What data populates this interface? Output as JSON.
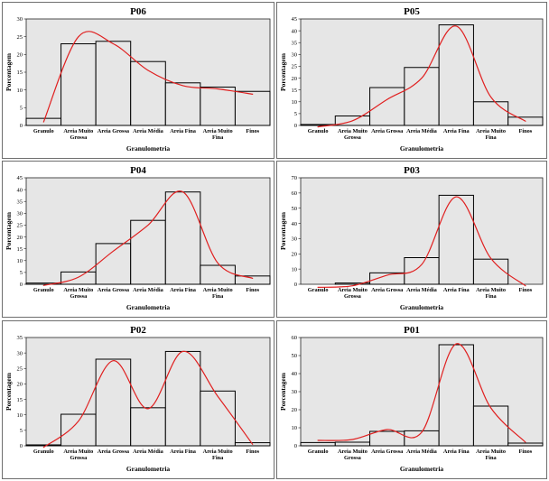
{
  "chart_data": [
    {
      "type": "bar",
      "title": "P06",
      "xlabel": "Granulometria",
      "ylabel": "Porcentagem",
      "categories": [
        "Granulo",
        "Areia Muito Grossa",
        "Areia Grossa",
        "Areia Média",
        "Areia Fina",
        "Areia Muito Fina",
        "Finos"
      ],
      "values": [
        2,
        23,
        23.7,
        18,
        12,
        10.8,
        9.6
      ],
      "ylim": [
        0,
        30
      ],
      "yticks": [
        0,
        5,
        10,
        15,
        20,
        25,
        30
      ],
      "curve": [
        1,
        25,
        23,
        15.5,
        11.2,
        10.3,
        8.8
      ],
      "bar_color": "#e6e6e6",
      "curve_color": "#e02020"
    },
    {
      "type": "bar",
      "title": "P05",
      "xlabel": "Granulometria",
      "ylabel": "Porcentagem",
      "categories": [
        "Granulo",
        "Areia Muito Grossa",
        "Areia Grossa",
        "Areia Média",
        "Areia Fina",
        "Areia Muito Fina",
        "Finos"
      ],
      "values": [
        0.4,
        4,
        16,
        24.5,
        42.5,
        10,
        3.5
      ],
      "ylim": [
        0,
        45
      ],
      "yticks": [
        0,
        5,
        10,
        15,
        20,
        25,
        30,
        35,
        40,
        45
      ],
      "curve": [
        -0.6,
        2,
        11,
        20,
        42,
        12,
        1.8
      ],
      "bar_color": "#e6e6e6",
      "curve_color": "#e02020"
    },
    {
      "type": "bar",
      "title": "P04",
      "xlabel": "Granulometria",
      "ylabel": "Porcentagem",
      "categories": [
        "Granulo",
        "Areia Muito Grossa",
        "Areia Grossa",
        "Areia Média",
        "Areia Fina",
        "Areia Muito Fina",
        "Finos"
      ],
      "values": [
        0.5,
        5.2,
        17.2,
        27,
        39,
        8,
        3.5
      ],
      "ylim": [
        0,
        45
      ],
      "yticks": [
        0,
        5,
        10,
        15,
        20,
        25,
        30,
        35,
        40,
        45
      ],
      "curve": [
        -0.5,
        3,
        14,
        25,
        39,
        9,
        2.5
      ],
      "bar_color": "#e6e6e6",
      "curve_color": "#e02020"
    },
    {
      "type": "bar",
      "title": "P03",
      "xlabel": "Granulometria",
      "ylabel": "Porcentagem",
      "categories": [
        "Granulo",
        "Areia Muito Grossa",
        "Areia Grossa",
        "Areia Média",
        "Areia Fina",
        "Areia Muito Fina",
        "Finos"
      ],
      "values": [
        0,
        0.8,
        7.5,
        17.5,
        58.5,
        16.5,
        0
      ],
      "ylim": [
        0,
        70
      ],
      "yticks": [
        0,
        10,
        20,
        30,
        40,
        50,
        60,
        70
      ],
      "curve": [
        -2,
        -1,
        6,
        13,
        57.5,
        17,
        -1
      ],
      "bar_color": "#e6e6e6",
      "curve_color": "#e02020"
    },
    {
      "type": "bar",
      "title": "P02",
      "xlabel": "Granulometria",
      "ylabel": "Porcentagem",
      "categories": [
        "Granulo",
        "Areia Muito Grossa",
        "Areia Grossa",
        "Areia Média",
        "Areia Fina",
        "Areia Muito Fina",
        "Finos"
      ],
      "values": [
        0.3,
        10.2,
        28,
        12.3,
        30.5,
        17.7,
        1
      ],
      "ylim": [
        0,
        35
      ],
      "yticks": [
        0,
        5,
        10,
        15,
        20,
        25,
        30,
        35
      ],
      "curve": [
        -0.5,
        8,
        27.5,
        12,
        30.5,
        16,
        0.5
      ],
      "bar_color": "#e6e6e6",
      "curve_color": "#e02020"
    },
    {
      "type": "bar",
      "title": "P01",
      "xlabel": "Granulometria",
      "ylabel": "Porcentagem",
      "categories": [
        "Granulo",
        "Areia Muito Grossa",
        "Areia Grossa",
        "Areia Média",
        "Areia Fina",
        "Areia Muito Fina",
        "Finos"
      ],
      "values": [
        1.8,
        2,
        8,
        8.3,
        56,
        22,
        1.5
      ],
      "ylim": [
        0,
        60
      ],
      "yticks": [
        0,
        10,
        20,
        30,
        40,
        50,
        60
      ],
      "curve": [
        3,
        3.5,
        9,
        7.5,
        56.5,
        21,
        2
      ],
      "bar_color": "#e6e6e6",
      "curve_color": "#e02020"
    }
  ]
}
